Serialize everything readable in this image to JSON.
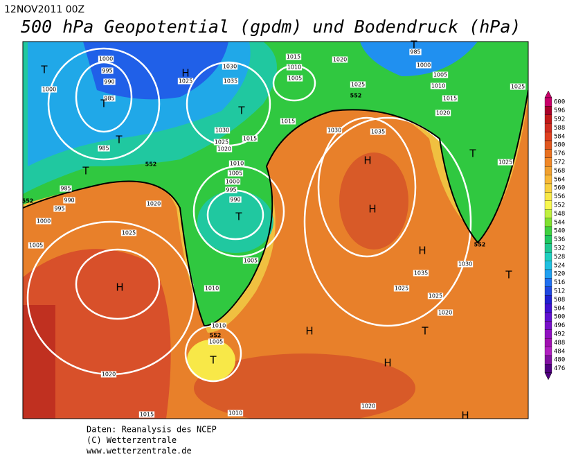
{
  "header": {
    "date": "12NOV2011 00Z",
    "title": "500 hPa Geopotential (gpdm) und Bodendruck (hPa)"
  },
  "map": {
    "isobar_labels": [
      "1000",
      "995",
      "990",
      "985",
      "1000",
      "985",
      "985",
      "990",
      "995",
      "1000",
      "1005",
      "1020",
      "1025",
      "1020",
      "1015",
      "1010",
      "1030",
      "1025",
      "1035",
      "1030",
      "1025",
      "1020",
      "1015",
      "1010",
      "1005",
      "1000",
      "995",
      "990",
      "1005",
      "1010",
      "1010",
      "1005",
      "1015",
      "1010",
      "1005",
      "1015",
      "1020",
      "1025",
      "1030",
      "1035",
      "985",
      "1000",
      "1005",
      "1010",
      "1015",
      "1020",
      "1025",
      "1025",
      "1030",
      "1035",
      "1025",
      "1025",
      "1020",
      "1020"
    ],
    "contour_labels": [
      "552",
      "552",
      "552",
      "552",
      "552"
    ],
    "pressure_centers": [
      "T",
      "T",
      "T",
      "T",
      "H",
      "T",
      "T",
      "H",
      "T",
      "T",
      "T",
      "H",
      "H",
      "H",
      "H",
      "T",
      "H",
      "T",
      "H"
    ]
  },
  "legend": {
    "levels": [
      600,
      596,
      592,
      588,
      584,
      580,
      576,
      572,
      568,
      564,
      560,
      556,
      552,
      548,
      544,
      540,
      536,
      532,
      528,
      524,
      520,
      516,
      512,
      508,
      504,
      500,
      496,
      492,
      488,
      484,
      480,
      476
    ]
  },
  "footer": {
    "lines": [
      "Daten: Reanalysis des NCEP",
      "(C) Wetterzentrale",
      "www.wetterzentrale.de"
    ]
  }
}
